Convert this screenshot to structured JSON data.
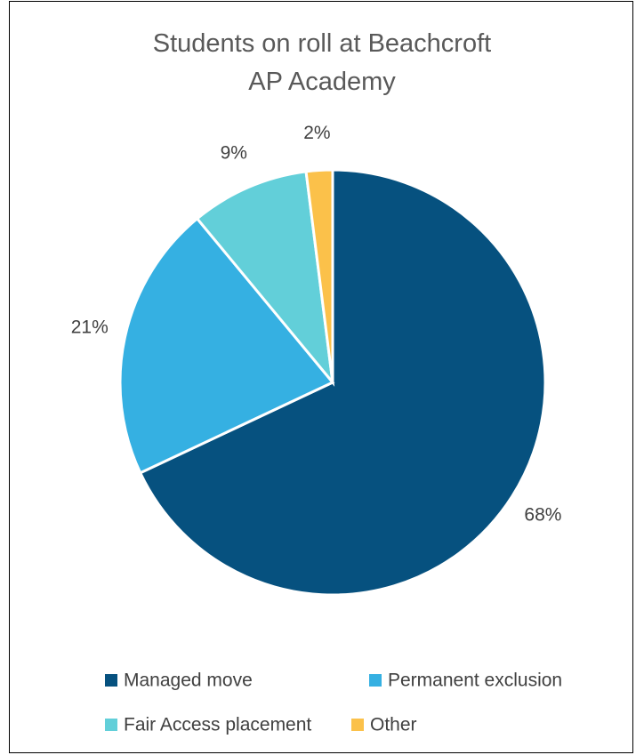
{
  "chart_data": {
    "type": "pie",
    "title": "Students on roll at Beachcroft AP Academy",
    "categories": [
      "Managed move",
      "Permanent exclusion",
      "Fair Access placement",
      "Other"
    ],
    "values": [
      68,
      21,
      9,
      2
    ],
    "value_labels": [
      "68%",
      "21%",
      "9%",
      "2%"
    ],
    "colors": [
      "#06517f",
      "#35b0e2",
      "#62cfd9",
      "#fbc14a"
    ],
    "legend": "bottom"
  }
}
